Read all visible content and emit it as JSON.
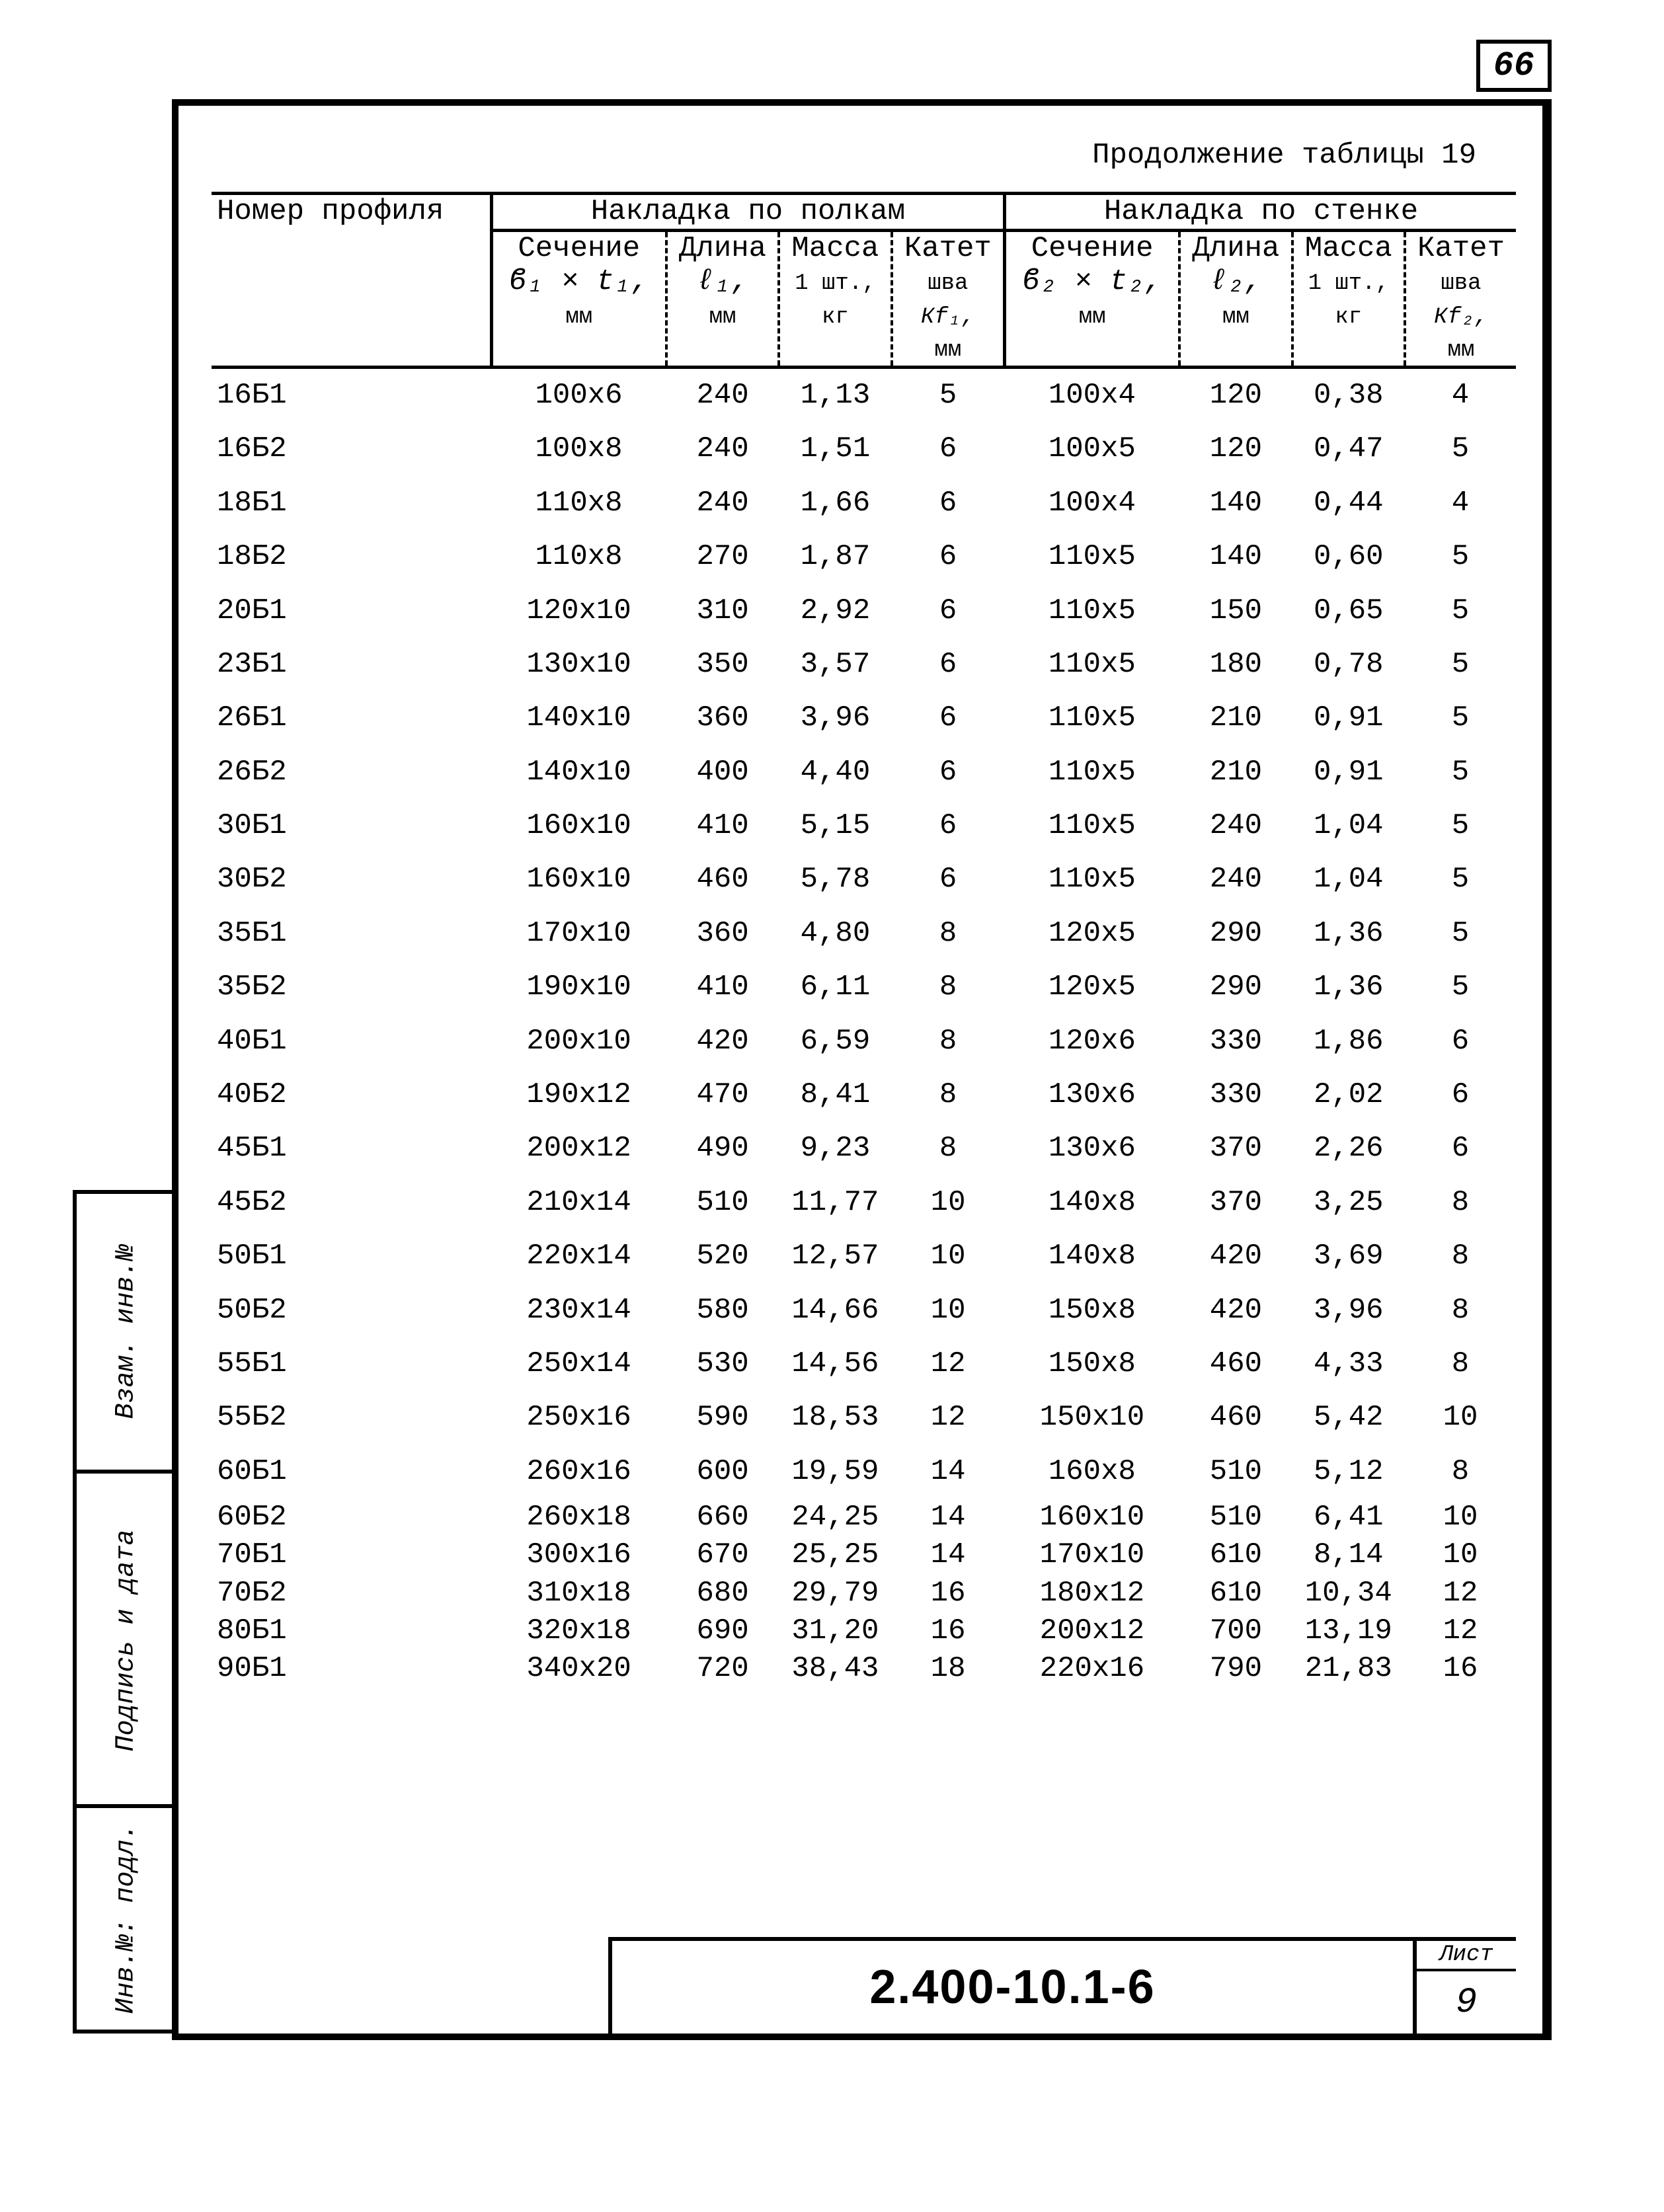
{
  "page_corner": "66",
  "caption": "Продолжение таблицы 19",
  "doc_number": "2.400-10.1-6",
  "sheet_label": "Лист",
  "sheet_number": "9",
  "side_labels": [
    "Взам. инв.№",
    "Подпись и дата",
    "Инв.№: подл."
  ],
  "headers": {
    "profile": "Номер профиля",
    "group1": "Накладка по полкам",
    "group2": "Накладка по стенке",
    "sec": "Сечение",
    "sec1_sub": "ϐ₁ × t₁,",
    "sec2_sub": "ϐ₂ × t₂,",
    "mm": "мм",
    "len": "Длина",
    "len1_sub": "ℓ₁,",
    "len2_sub": "ℓ₂,",
    "mass": "Масса",
    "mass_sub": "1 шт.,",
    "kg": "кг",
    "kat": "Катет",
    "kat_sub": "шва",
    "kat1_sym": "Кf₁,",
    "kat2_sym": "Кf₂,"
  },
  "rows": [
    [
      "16Б1",
      "100х6",
      "240",
      "1,13",
      "5",
      "100х4",
      "120",
      "0,38",
      "4"
    ],
    [
      "16Б2",
      "100х8",
      "240",
      "1,51",
      "6",
      "100х5",
      "120",
      "0,47",
      "5"
    ],
    [
      "18Б1",
      "110х8",
      "240",
      "1,66",
      "6",
      "100х4",
      "140",
      "0,44",
      "4"
    ],
    [
      "18Б2",
      "110х8",
      "270",
      "1,87",
      "6",
      "110х5",
      "140",
      "0,60",
      "5"
    ],
    [
      "20Б1",
      "120х10",
      "310",
      "2,92",
      "6",
      "110х5",
      "150",
      "0,65",
      "5"
    ],
    [
      "23Б1",
      "130х10",
      "350",
      "3,57",
      "6",
      "110х5",
      "180",
      "0,78",
      "5"
    ],
    [
      "26Б1",
      "140х10",
      "360",
      "3,96",
      "6",
      "110х5",
      "210",
      "0,91",
      "5"
    ],
    [
      "26Б2",
      "140х10",
      "400",
      "4,40",
      "6",
      "110х5",
      "210",
      "0,91",
      "5"
    ],
    [
      "30Б1",
      "160х10",
      "410",
      "5,15",
      "6",
      "110х5",
      "240",
      "1,04",
      "5"
    ],
    [
      "30Б2",
      "160х10",
      "460",
      "5,78",
      "6",
      "110х5",
      "240",
      "1,04",
      "5"
    ],
    [
      "35Б1",
      "170х10",
      "360",
      "4,80",
      "8",
      "120х5",
      "290",
      "1,36",
      "5"
    ],
    [
      "35Б2",
      "190х10",
      "410",
      "6,11",
      "8",
      "120х5",
      "290",
      "1,36",
      "5"
    ],
    [
      "40Б1",
      "200х10",
      "420",
      "6,59",
      "8",
      "120х6",
      "330",
      "1,86",
      "6"
    ],
    [
      "40Б2",
      "190х12",
      "470",
      "8,41",
      "8",
      "130х6",
      "330",
      "2,02",
      "6"
    ],
    [
      "45Б1",
      "200х12",
      "490",
      "9,23",
      "8",
      "130х6",
      "370",
      "2,26",
      "6"
    ],
    [
      "45Б2",
      "210х14",
      "510",
      "11,77",
      "10",
      "140х8",
      "370",
      "3,25",
      "8"
    ],
    [
      "50Б1",
      "220х14",
      "520",
      "12,57",
      "10",
      "140х8",
      "420",
      "3,69",
      "8"
    ],
    [
      "50Б2",
      "230х14",
      "580",
      "14,66",
      "10",
      "150х8",
      "420",
      "3,96",
      "8"
    ],
    [
      "55Б1",
      "250х14",
      "530",
      "14,56",
      "12",
      "150х8",
      "460",
      "4,33",
      "8"
    ],
    [
      "55Б2",
      "250х16",
      "590",
      "18,53",
      "12",
      "150х10",
      "460",
      "5,42",
      "10"
    ],
    [
      "60Б1",
      "260х16",
      "600",
      "19,59",
      "14",
      "160х8",
      "510",
      "5,12",
      "8"
    ],
    [
      "60Б2",
      "260х18",
      "660",
      "24,25",
      "14",
      "160х10",
      "510",
      "6,41",
      "10"
    ],
    [
      "70Б1",
      "300х16",
      "670",
      "25,25",
      "14",
      "170х10",
      "610",
      "8,14",
      "10"
    ],
    [
      "70Б2",
      "310х18",
      "680",
      "29,79",
      "16",
      "180х12",
      "610",
      "10,34",
      "12"
    ],
    [
      "80Б1",
      "320х18",
      "690",
      "31,20",
      "16",
      "200х12",
      "700",
      "13,19",
      "12"
    ],
    [
      "90Б1",
      "340х20",
      "720",
      "38,43",
      "18",
      "220х16",
      "790",
      "21,83",
      "16"
    ]
  ]
}
